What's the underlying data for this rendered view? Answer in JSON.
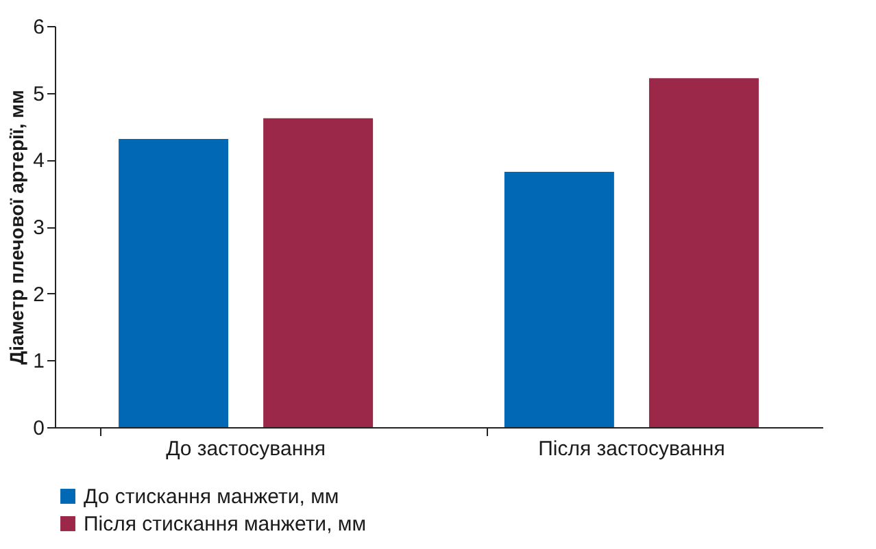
{
  "chart_data": {
    "type": "bar",
    "ylabel": "Діаметр плечової артерії, мм",
    "categories": [
      "До застосування",
      "Після застосування"
    ],
    "series": [
      {
        "name": "До стискання манжети, мм",
        "color": "#0068b4",
        "values": [
          4.31,
          3.82
        ]
      },
      {
        "name": "Після стискання манжети, мм",
        "color": "#9b2749",
        "values": [
          4.62,
          5.22
        ]
      }
    ],
    "ylim": [
      0,
      6
    ],
    "yticks": [
      0,
      1,
      2,
      3,
      4,
      5,
      6
    ],
    "grid": false,
    "legend": "bottom"
  }
}
